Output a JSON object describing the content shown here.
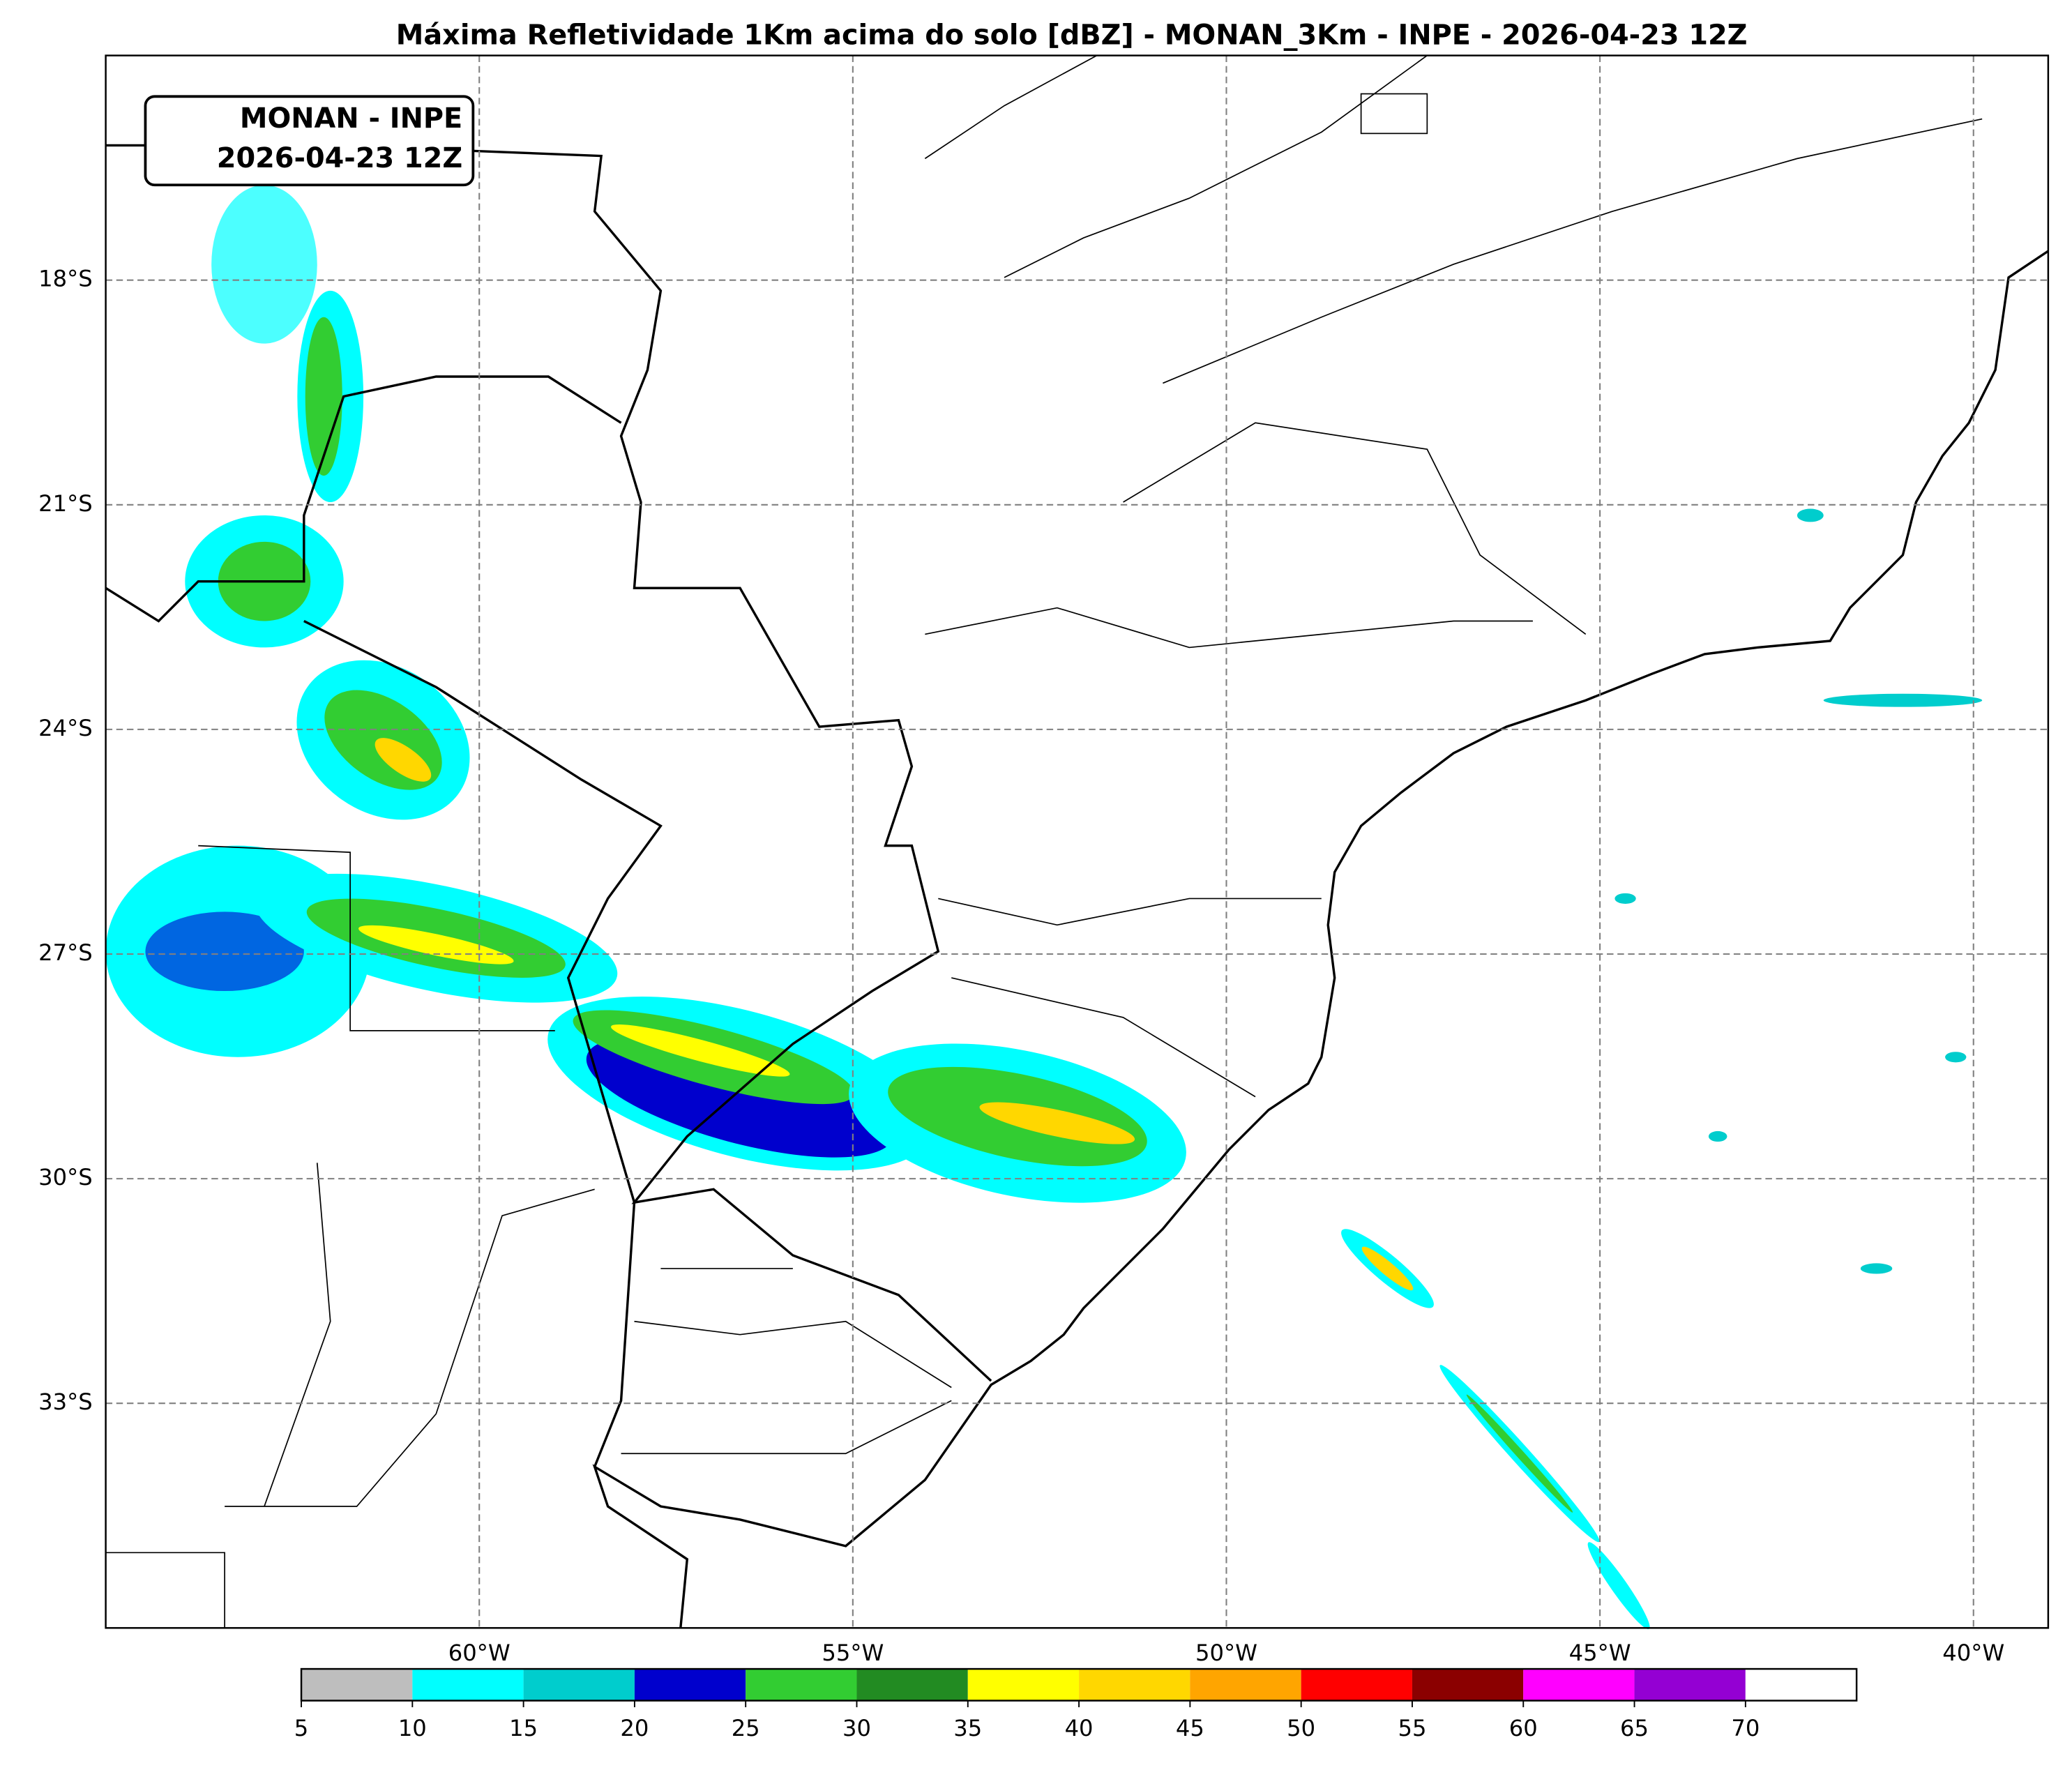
{
  "title": "Máxima Refletividade 1Km acima do solo [dBZ] - MONAN_3Km - INPE - 2026-04-23 12Z",
  "annotation": [
    "MONAN - INPE",
    "2026-04-23 12Z"
  ],
  "map": {
    "xlim": [
      -65,
      -39
    ],
    "ylim": [
      -36,
      -15
    ],
    "xticks": [
      {
        "value": -60,
        "label": "60°W"
      },
      {
        "value": -55,
        "label": "55°W"
      },
      {
        "value": -50,
        "label": "50°W"
      },
      {
        "value": -45,
        "label": "45°W"
      },
      {
        "value": -40,
        "label": "40°W"
      }
    ],
    "yticks": [
      {
        "value": -18,
        "label": "18°S"
      },
      {
        "value": -21,
        "label": "21°S"
      },
      {
        "value": -24,
        "label": "24°S"
      },
      {
        "value": -27,
        "label": "27°S"
      },
      {
        "value": -30,
        "label": "30°S"
      },
      {
        "value": -33,
        "label": "33°S"
      }
    ]
  },
  "colorbar": {
    "lim": [
      5,
      75
    ],
    "ticks": [
      5,
      10,
      15,
      20,
      25,
      30,
      35,
      40,
      45,
      50,
      55,
      60,
      65,
      70
    ],
    "colors": [
      "#bebebe",
      "#00ffff",
      "#00cdcd",
      "#0000cd",
      "#32cd32",
      "#228b22",
      "#ffff00",
      "#ffd700",
      "#ffa500",
      "#ff0000",
      "#8b0000",
      "#ff00ff",
      "#9400d3",
      "#ffffff"
    ]
  }
}
